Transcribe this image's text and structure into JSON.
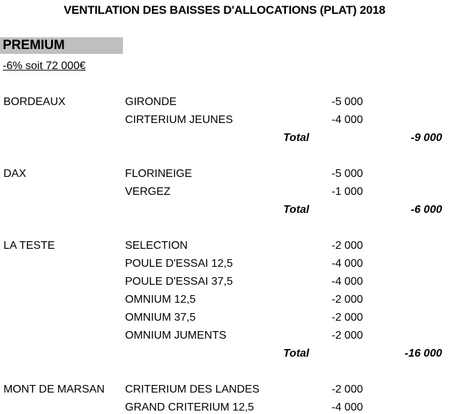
{
  "title": "VENTILATION DES BAISSES D'ALLOCATIONS (PLAT) 2018",
  "category": {
    "name": "PREMIUM",
    "subtitle": "-6% soit 72 000€",
    "highlight_color": "#bfbfbf"
  },
  "total_label": "Total",
  "sections": [
    {
      "venue": "BORDEAUX",
      "rows": [
        {
          "race": "GIRONDE",
          "amount": "-5 000"
        },
        {
          "race": "CIRTERIUM JEUNES",
          "amount": "-4 000"
        }
      ],
      "total": "-9 000"
    },
    {
      "venue": "DAX",
      "rows": [
        {
          "race": "FLORINEIGE",
          "amount": "-5 000"
        },
        {
          "race": "VERGEZ",
          "amount": "-1 000"
        }
      ],
      "total": "-6 000"
    },
    {
      "venue": "LA TESTE",
      "rows": [
        {
          "race": "SELECTION",
          "amount": "-2 000"
        },
        {
          "race": "POULE D'ESSAI 12,5",
          "amount": "-4 000"
        },
        {
          "race": "POULE D'ESSAI 37,5",
          "amount": "-4 000"
        },
        {
          "race": "OMNIUM 12,5",
          "amount": "-2 000"
        },
        {
          "race": "OMNIUM 37,5",
          "amount": "-2 000"
        },
        {
          "race": "OMNIUM JUMENTS",
          "amount": "-2 000"
        }
      ],
      "total": "-16 000"
    },
    {
      "venue": "MONT DE MARSAN",
      "rows": [
        {
          "race": "CRITERIUM DES LANDES",
          "amount": "-2 000"
        },
        {
          "race": "GRAND CRITERIUM 12,5",
          "amount": "-4 000"
        }
      ]
    }
  ]
}
